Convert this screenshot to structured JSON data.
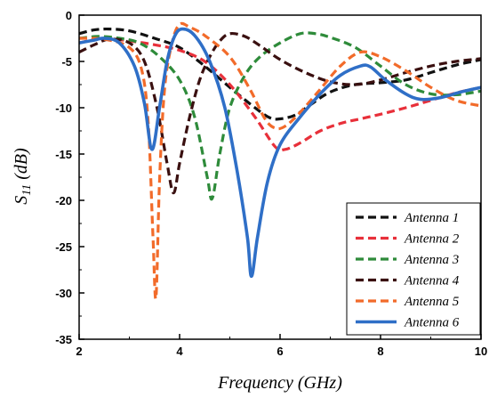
{
  "chart_data": {
    "type": "line",
    "title": "",
    "xlabel": "Frequency (GHz)",
    "ylabel_main": "S",
    "ylabel_sub": "11",
    "ylabel_suffix": " (dB)",
    "xlim": [
      2,
      10
    ],
    "ylim": [
      -35,
      0
    ],
    "xticks": [
      "2",
      "4",
      "6",
      "8",
      "10"
    ],
    "yticks": [
      "0",
      "-5",
      "-10",
      "-15",
      "-20",
      "-25",
      "-30",
      "-35"
    ],
    "grid": false,
    "legend_position": "bottom-right",
    "series": [
      {
        "name": "Antenna 1",
        "color": "#111111",
        "style": "dashed",
        "points": [
          [
            2,
            -2
          ],
          [
            2.3,
            -1.6
          ],
          [
            2.6,
            -1.5
          ],
          [
            3,
            -1.7
          ],
          [
            3.5,
            -2.5
          ],
          [
            4,
            -3.5
          ],
          [
            4.5,
            -5.5
          ],
          [
            5,
            -7.8
          ],
          [
            5.5,
            -10
          ],
          [
            5.8,
            -11.1
          ],
          [
            6,
            -11.2
          ],
          [
            6.3,
            -10.8
          ],
          [
            6.6,
            -9.7
          ],
          [
            7,
            -8.3
          ],
          [
            7.5,
            -7.5
          ],
          [
            8,
            -7.3
          ],
          [
            8.5,
            -7
          ],
          [
            9,
            -6.2
          ],
          [
            9.5,
            -5.4
          ],
          [
            10,
            -4.8
          ]
        ]
      },
      {
        "name": "Antenna 2",
        "color": "#e8303a",
        "style": "dashed",
        "points": [
          [
            2,
            -3
          ],
          [
            2.5,
            -2.5
          ],
          [
            3,
            -2.8
          ],
          [
            3.5,
            -3.2
          ],
          [
            4,
            -3.8
          ],
          [
            4.5,
            -5
          ],
          [
            5,
            -7.5
          ],
          [
            5.5,
            -11
          ],
          [
            5.9,
            -14.2
          ],
          [
            6.1,
            -14.5
          ],
          [
            6.4,
            -13.8
          ],
          [
            6.8,
            -12.5
          ],
          [
            7.2,
            -11.7
          ],
          [
            7.6,
            -11.2
          ],
          [
            8,
            -10.7
          ],
          [
            8.5,
            -10
          ],
          [
            9,
            -9.2
          ],
          [
            9.5,
            -8.4
          ],
          [
            10,
            -7.8
          ]
        ]
      },
      {
        "name": "Antenna 3",
        "color": "#2e8b3a",
        "style": "dashed",
        "points": [
          [
            2,
            -2.5
          ],
          [
            2.4,
            -2.3
          ],
          [
            2.8,
            -2.5
          ],
          [
            3.2,
            -3
          ],
          [
            3.6,
            -4.5
          ],
          [
            4,
            -7
          ],
          [
            4.3,
            -11
          ],
          [
            4.55,
            -17.5
          ],
          [
            4.65,
            -19.8
          ],
          [
            4.8,
            -15
          ],
          [
            5,
            -10
          ],
          [
            5.3,
            -6.5
          ],
          [
            5.6,
            -4.5
          ],
          [
            6,
            -3
          ],
          [
            6.4,
            -2
          ],
          [
            6.7,
            -2
          ],
          [
            7,
            -2.4
          ],
          [
            7.5,
            -3.5
          ],
          [
            8,
            -5.5
          ],
          [
            8.5,
            -7.5
          ],
          [
            9,
            -8.5
          ],
          [
            9.5,
            -8.6
          ],
          [
            10,
            -8.2
          ]
        ]
      },
      {
        "name": "Antenna 4",
        "color": "#3a1010",
        "style": "dashed",
        "points": [
          [
            2,
            -4
          ],
          [
            2.3,
            -3.2
          ],
          [
            2.6,
            -2.6
          ],
          [
            3,
            -3
          ],
          [
            3.3,
            -5
          ],
          [
            3.55,
            -10
          ],
          [
            3.75,
            -16
          ],
          [
            3.88,
            -19.2
          ],
          [
            4,
            -16
          ],
          [
            4.2,
            -11
          ],
          [
            4.4,
            -7
          ],
          [
            4.6,
            -4.5
          ],
          [
            4.8,
            -2.8
          ],
          [
            5,
            -2
          ],
          [
            5.3,
            -2.3
          ],
          [
            5.6,
            -3.3
          ],
          [
            6,
            -4.8
          ],
          [
            6.5,
            -6.2
          ],
          [
            7,
            -7.2
          ],
          [
            7.5,
            -7.5
          ],
          [
            8,
            -7
          ],
          [
            8.5,
            -6.2
          ],
          [
            9,
            -5.5
          ],
          [
            9.5,
            -5
          ],
          [
            10,
            -4.7
          ]
        ]
      },
      {
        "name": "Antenna 5",
        "color": "#f26b2a",
        "style": "dashed",
        "points": [
          [
            2,
            -2.5
          ],
          [
            2.5,
            -2.6
          ],
          [
            3,
            -3.5
          ],
          [
            3.25,
            -6
          ],
          [
            3.38,
            -12
          ],
          [
            3.47,
            -24
          ],
          [
            3.53,
            -30.5
          ],
          [
            3.6,
            -18
          ],
          [
            3.7,
            -8
          ],
          [
            3.85,
            -3
          ],
          [
            4,
            -1
          ],
          [
            4.2,
            -1.3
          ],
          [
            4.5,
            -2.2
          ],
          [
            5,
            -4.5
          ],
          [
            5.4,
            -8
          ],
          [
            5.7,
            -11.2
          ],
          [
            5.9,
            -12.2
          ],
          [
            6.1,
            -12
          ],
          [
            6.4,
            -10.5
          ],
          [
            6.8,
            -8
          ],
          [
            7.2,
            -5.5
          ],
          [
            7.6,
            -4
          ],
          [
            8,
            -4.5
          ],
          [
            8.5,
            -6
          ],
          [
            9,
            -7.8
          ],
          [
            9.5,
            -9.2
          ],
          [
            10,
            -9.8
          ]
        ]
      },
      {
        "name": "Antenna 6",
        "color": "#2f6fc7",
        "style": "solid",
        "points": [
          [
            2,
            -3
          ],
          [
            2.3,
            -2.7
          ],
          [
            2.5,
            -2.5
          ],
          [
            2.8,
            -3
          ],
          [
            3.1,
            -5.5
          ],
          [
            3.3,
            -9.5
          ],
          [
            3.45,
            -14.5
          ],
          [
            3.6,
            -10
          ],
          [
            3.75,
            -5
          ],
          [
            3.9,
            -2.3
          ],
          [
            4.05,
            -1.5
          ],
          [
            4.3,
            -2.2
          ],
          [
            4.6,
            -5
          ],
          [
            4.9,
            -10
          ],
          [
            5.15,
            -17
          ],
          [
            5.35,
            -24
          ],
          [
            5.43,
            -28.2
          ],
          [
            5.55,
            -24
          ],
          [
            5.75,
            -18
          ],
          [
            6,
            -14
          ],
          [
            6.4,
            -11
          ],
          [
            6.8,
            -8.5
          ],
          [
            7.2,
            -6.5
          ],
          [
            7.6,
            -5.5
          ],
          [
            7.8,
            -5.6
          ],
          [
            8.1,
            -7
          ],
          [
            8.5,
            -8.5
          ],
          [
            8.8,
            -9.1
          ],
          [
            9.2,
            -8.9
          ],
          [
            9.6,
            -8.3
          ],
          [
            10,
            -7.8
          ]
        ]
      }
    ]
  }
}
